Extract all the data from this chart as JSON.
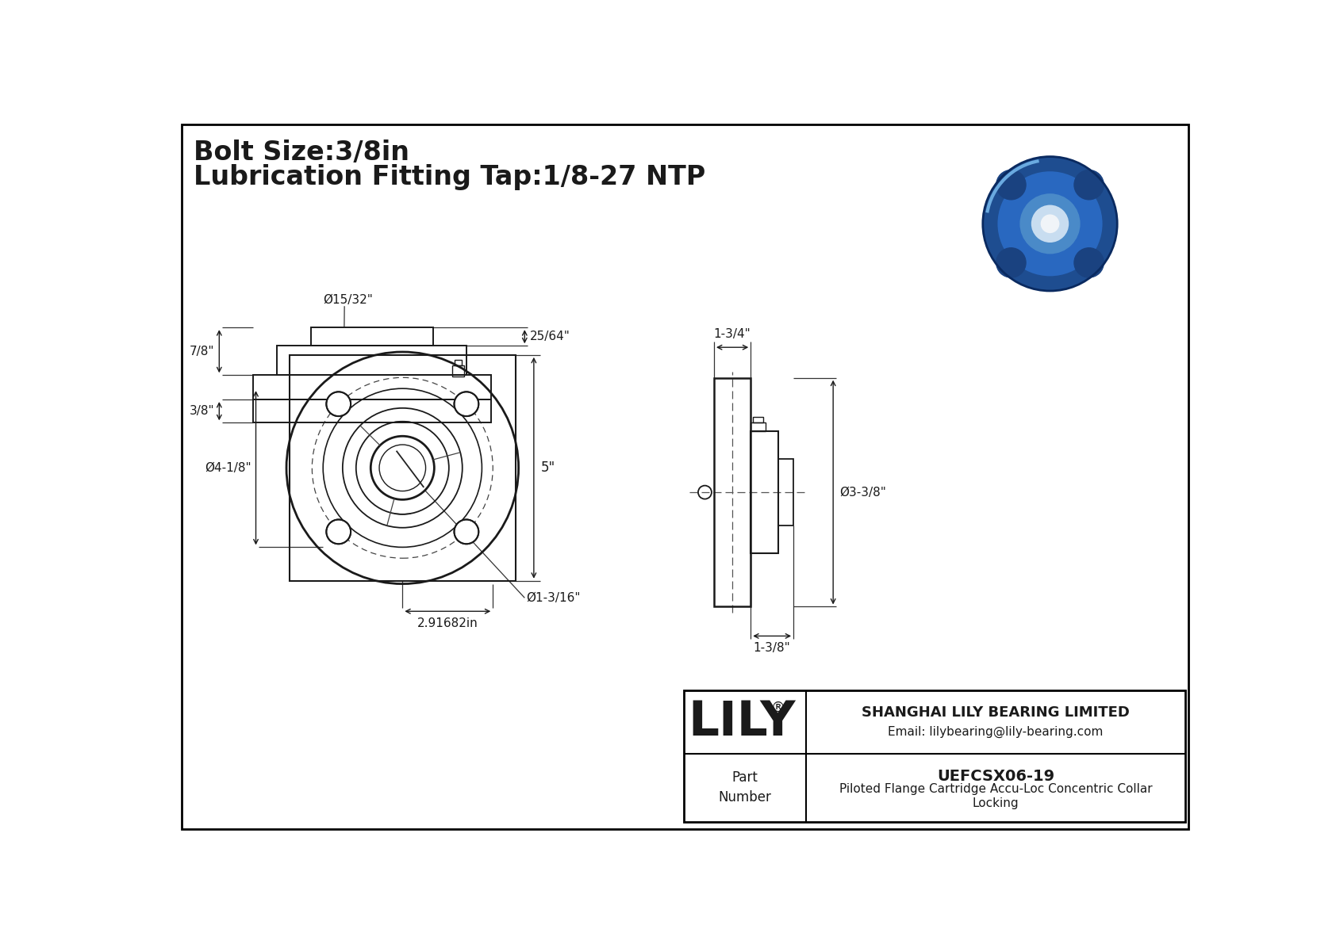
{
  "bg_color": "#ffffff",
  "line_color": "#1a1a1a",
  "title_line1": "Bolt Size:3/8in",
  "title_line2": "Lubrication Fitting Tap:1/8-27 NTP",
  "dim_bolt_circle": "Ø15/32\"",
  "dim_flange_od": "Ø4-1/8\"",
  "dim_height": "5\"",
  "dim_bolt_spacing": "2.91682in",
  "dim_bore": "Ø1-3/16\"",
  "dim_side_width_top": "1-3/4\"",
  "dim_side_od": "Ø3-3/8\"",
  "dim_side_width_bot": "1-3/8\"",
  "dim_bot_height": "7/8\"",
  "dim_bot_protrusion": "25/64\"",
  "dim_bot_base": "3/8\"",
  "company_name": "SHANGHAI LILY BEARING LIMITED",
  "company_email": "Email: lilybearing@lily-bearing.com",
  "part_label": "Part\nNumber",
  "part_number": "UEFCSX06-19",
  "part_desc": "Piloted Flange Cartridge Accu-Loc Concentric Collar\nLocking",
  "logo_text": "LILY",
  "logo_reg": "®"
}
